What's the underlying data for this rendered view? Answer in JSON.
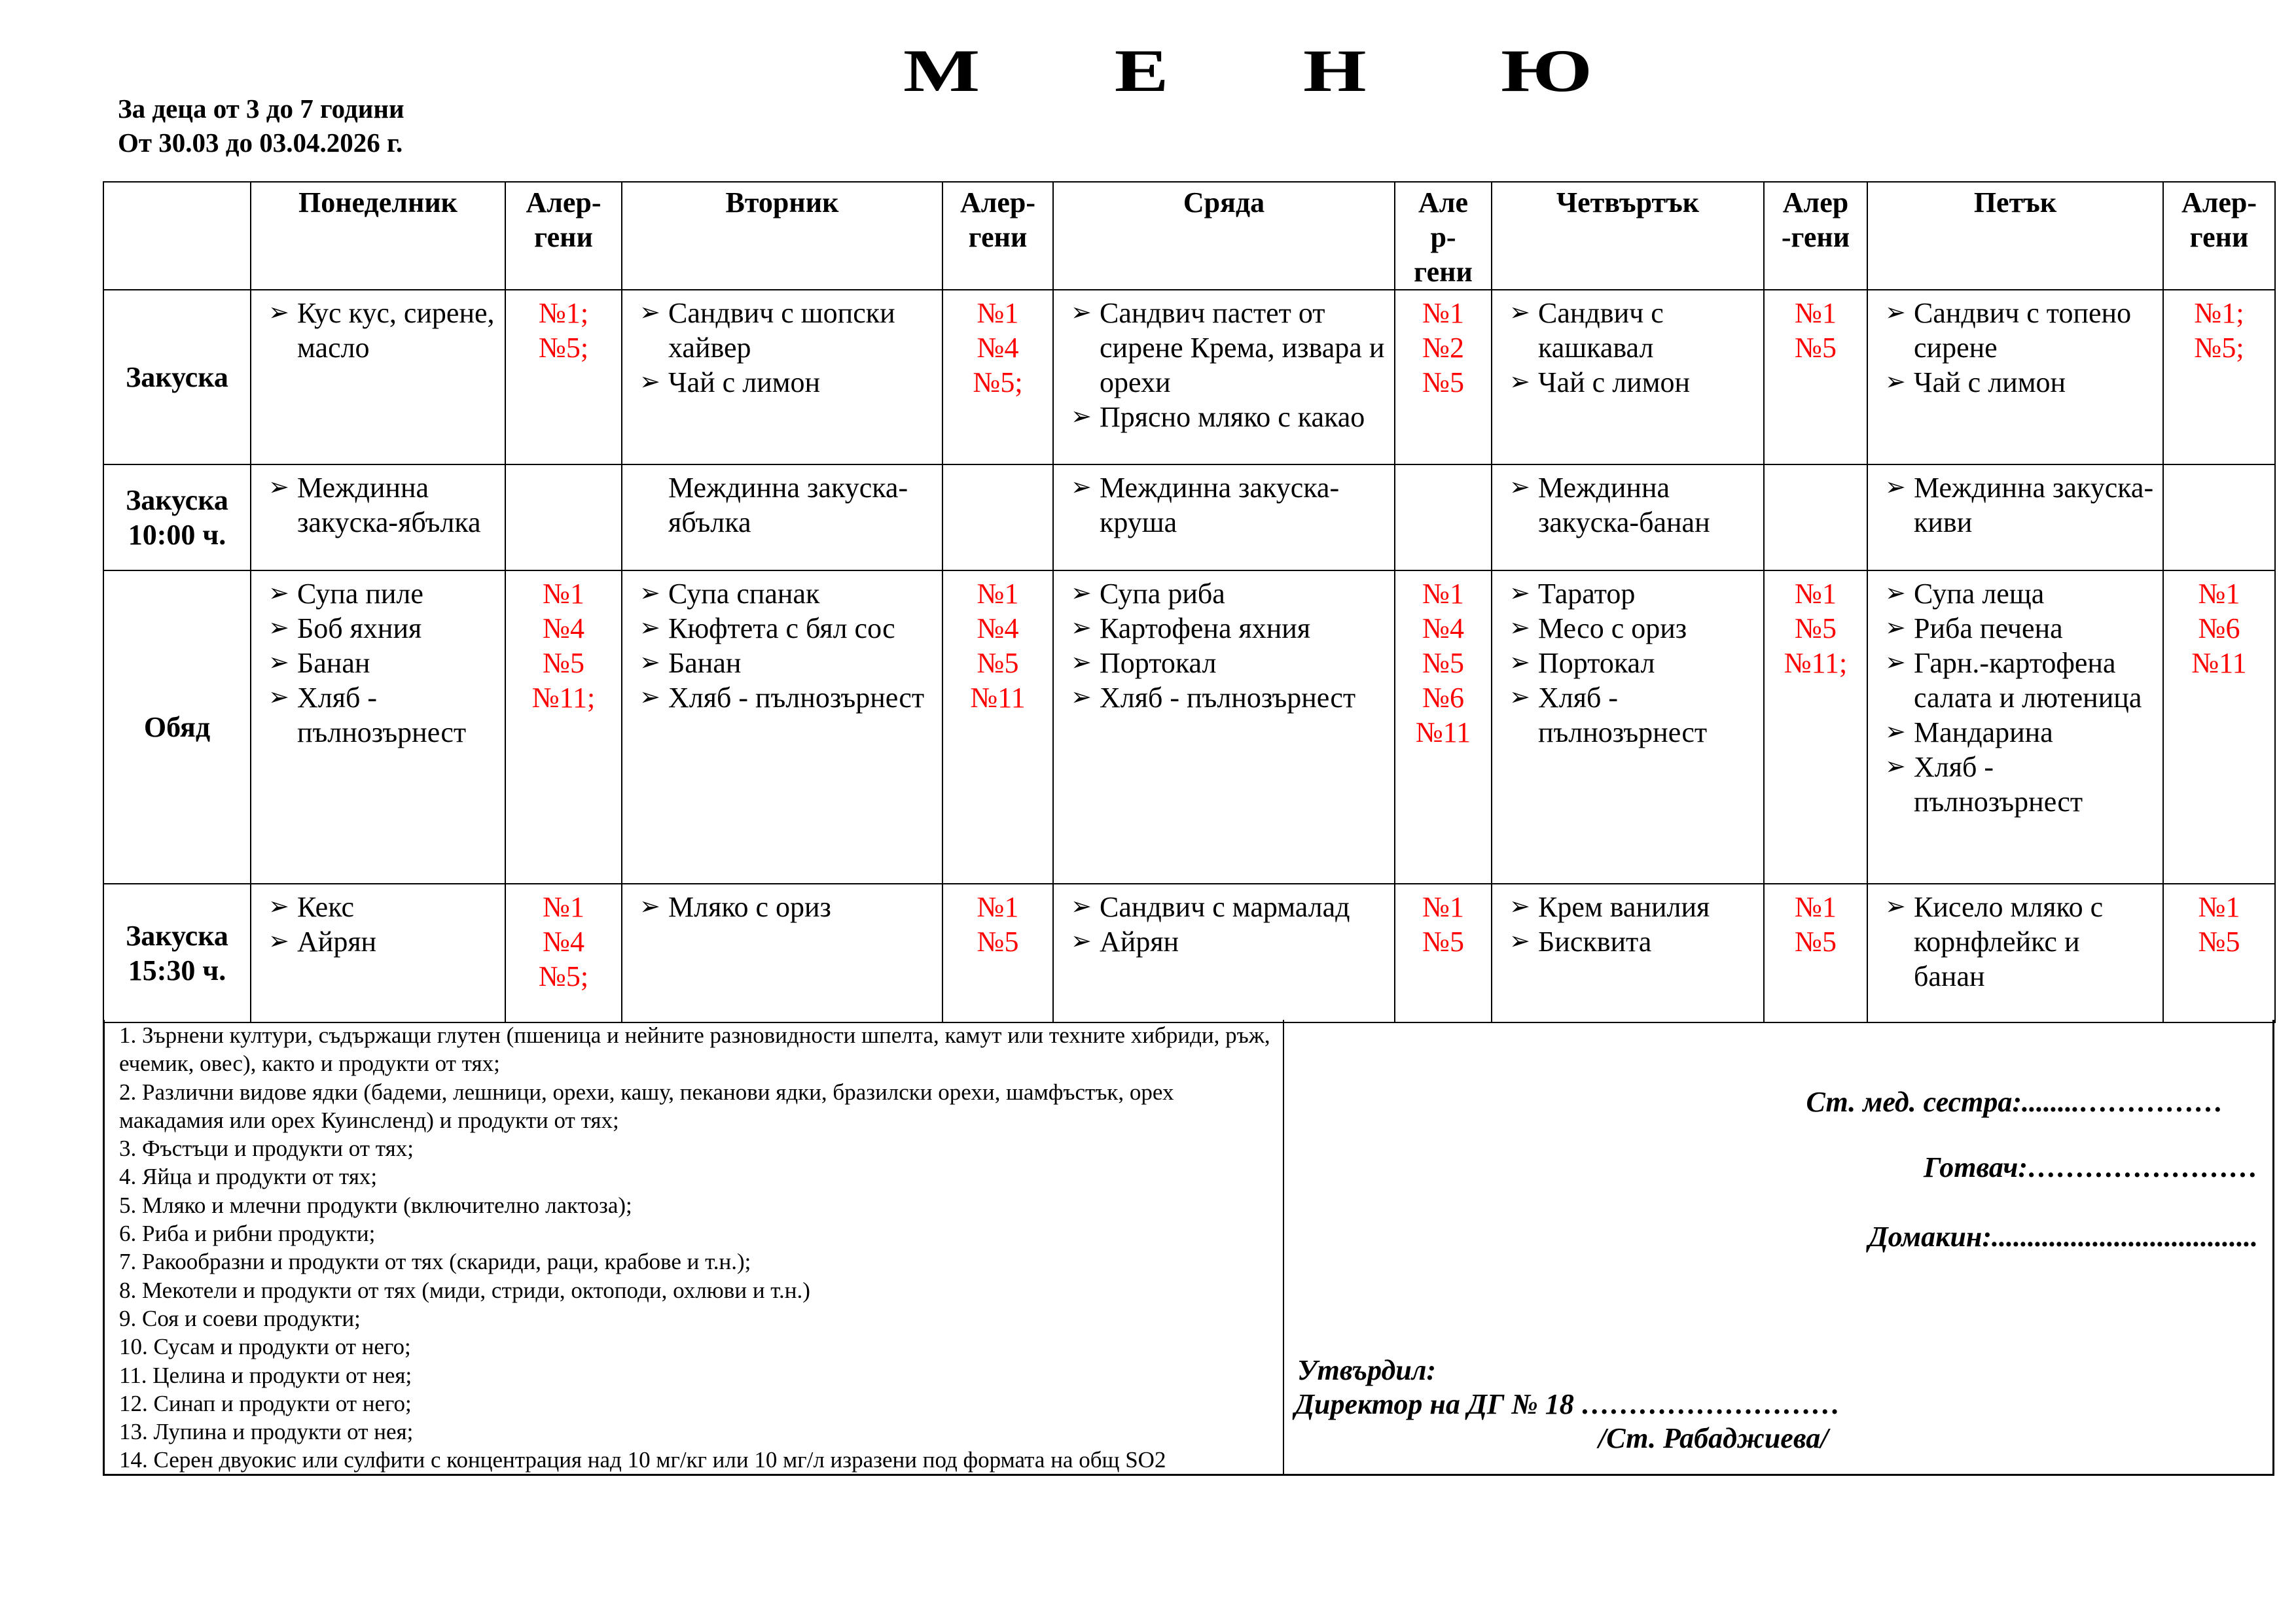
{
  "title_letters": [
    "М",
    "Е",
    "Н",
    "Ю"
  ],
  "subtitle_age": "За деца от 3 до 7 години",
  "subtitle_period": "От 30.03 до 03.04.2026 г.",
  "days": [
    {
      "name": "Понеделник",
      "allergen_header": "Алер-\nгени"
    },
    {
      "name": "Вторник",
      "allergen_header": "Алер-\nгени"
    },
    {
      "name": "Сряда",
      "allergen_header": "Але\nр-\nгени"
    },
    {
      "name": "Четвъртък",
      "allergen_header": "Алер\n-гени"
    },
    {
      "name": "Петък",
      "allergen_header": "Алер-\nгени"
    }
  ],
  "meals": [
    {
      "label": "Закуска",
      "cells": [
        {
          "items": [
            "Кус кус, сирене, масло"
          ],
          "bullets": true,
          "allergens": [
            "№1;",
            "№5;"
          ]
        },
        {
          "items": [
            "Сандвич с шопски хайвер",
            "Чай с лимон"
          ],
          "bullets": true,
          "allergens": [
            "№1",
            "№4",
            "№5;"
          ]
        },
        {
          "items": [
            "Сандвич пастет от сирене Крема, извара и орехи",
            "Прясно мляко с какао"
          ],
          "bullets": true,
          "allergens": [
            "№1",
            "№2",
            "№5"
          ]
        },
        {
          "items": [
            "Сандвич с кашкавал",
            "Чай с лимон"
          ],
          "bullets": true,
          "allergens": [
            "№1",
            "№5"
          ]
        },
        {
          "items": [
            "Сандвич с топено сирене",
            "Чай с лимон"
          ],
          "bullets": true,
          "allergens": [
            "№1;",
            "№5;"
          ]
        }
      ]
    },
    {
      "label": "Закуска\n10:00 ч.",
      "cells": [
        {
          "items": [
            "Междинна закуска-ябълка"
          ],
          "bullets": true,
          "allergens": []
        },
        {
          "items": [
            "Междинна закуска-ябълка"
          ],
          "bullets": false,
          "allergens": []
        },
        {
          "items": [
            "Междинна закуска-круша"
          ],
          "bullets": true,
          "allergens": []
        },
        {
          "items": [
            "Междинна закуска-банан"
          ],
          "bullets": true,
          "allergens": []
        },
        {
          "items": [
            "Междинна закуска-киви"
          ],
          "bullets": true,
          "allergens": []
        }
      ]
    },
    {
      "label": "Обяд",
      "cells": [
        {
          "items": [
            "Супа пиле",
            "Боб яхния",
            "Банан",
            "Хляб - пълнозърнест"
          ],
          "bullets": true,
          "allergens": [
            "№1",
            "№4",
            "№5",
            "№11;"
          ]
        },
        {
          "items": [
            "Супа спанак",
            "Кюфтета с бял сос",
            "Банан",
            "Хляб - пълнозърнест"
          ],
          "bullets": true,
          "allergens": [
            "№1",
            "№4",
            "№5",
            "№11"
          ]
        },
        {
          "items": [
            "Супа риба",
            "Картофена яхния",
            "Портокал",
            "Хляб - пълнозърнест"
          ],
          "bullets": true,
          "allergens": [
            "№1",
            "№4",
            "№5",
            "№6",
            "№11"
          ]
        },
        {
          "items": [
            "Таратор",
            "Месо с ориз",
            "Портокал",
            "Хляб - пълнозърнест"
          ],
          "bullets": true,
          "allergens": [
            "№1",
            "№5",
            "№11;"
          ]
        },
        {
          "items": [
            "Супа леща",
            "Риба печена",
            "Гарн.-картофена салата и лютеница",
            "Мандарина",
            "Хляб - пълнозърнест"
          ],
          "bullets": true,
          "allergens": [
            "№1",
            "№6",
            "№11"
          ]
        }
      ]
    },
    {
      "label": "Закуска\n15:30 ч.",
      "cells": [
        {
          "items": [
            "Кекс",
            "Айрян"
          ],
          "bullets": true,
          "allergens": [
            "№1",
            "№4",
            "№5;"
          ]
        },
        {
          "items": [
            "Мляко с ориз"
          ],
          "bullets": true,
          "allergens": [
            "№1",
            "№5"
          ]
        },
        {
          "items": [
            "Сандвич с мармалад",
            "Айрян"
          ],
          "bullets": true,
          "allergens": [
            "№1",
            "№5"
          ]
        },
        {
          "items": [
            "Крем ванилия",
            "Бисквита"
          ],
          "bullets": true,
          "allergens": [
            "№1",
            "№5"
          ]
        },
        {
          "items": [
            "Кисело мляко с корнфлейкс и банан"
          ],
          "bullets": true,
          "allergens": [
            "№1",
            "№5"
          ]
        }
      ]
    }
  ],
  "bullet_icon": "arrowhead-bullet-icon",
  "allergen_color": "#ff0000",
  "allergen_legend": [
    "1. Зърнени култури, съдържащи глутен (пшеница и нейните разновидности шпелта, камут или техните хибриди, ръж, ечемик, овес), както и продукти от тях;",
    "2. Различни видове ядки (бадеми, лешници, орехи, кашу, пеканови ядки, бразилски орехи, шамфъстък, орех макадамия или орех Куинсленд) и продукти от тях;",
    "3. Фъстъци и продукти от тях;",
    "4. Яйца и продукти от тях;",
    "5. Мляко и млечни продукти (включително лактоза);",
    "6. Риба и рибни продукти;",
    "7. Ракообразни и продукти от тях (скариди, раци, крабове и т.н.);",
    "8. Мекотели и продукти от тях (миди, стриди, октоподи, охлюви и т.н.)",
    "9. Соя и соеви продукти;",
    "10. Сусам и продукти от него;",
    "11. Целина и продукти от нея;",
    "12. Синап и продукти от него;",
    "13. Лупина и продукти от нея;",
    "14. Серен двуокис или сулфити с концентрация над 10 мг/кг или 10 мг/л изразени под формата на общ SO2"
  ],
  "signatures": {
    "nurse": "Ст.  мед. сестра:........……………",
    "cook": "Готвач:……………………",
    "housekeeper": "Домакин:.....................................",
    "approved": "Утвърдил:",
    "director": "Директор на ДГ № 18 ………………………",
    "director_name": "/Ст. Рабаджиева/"
  }
}
